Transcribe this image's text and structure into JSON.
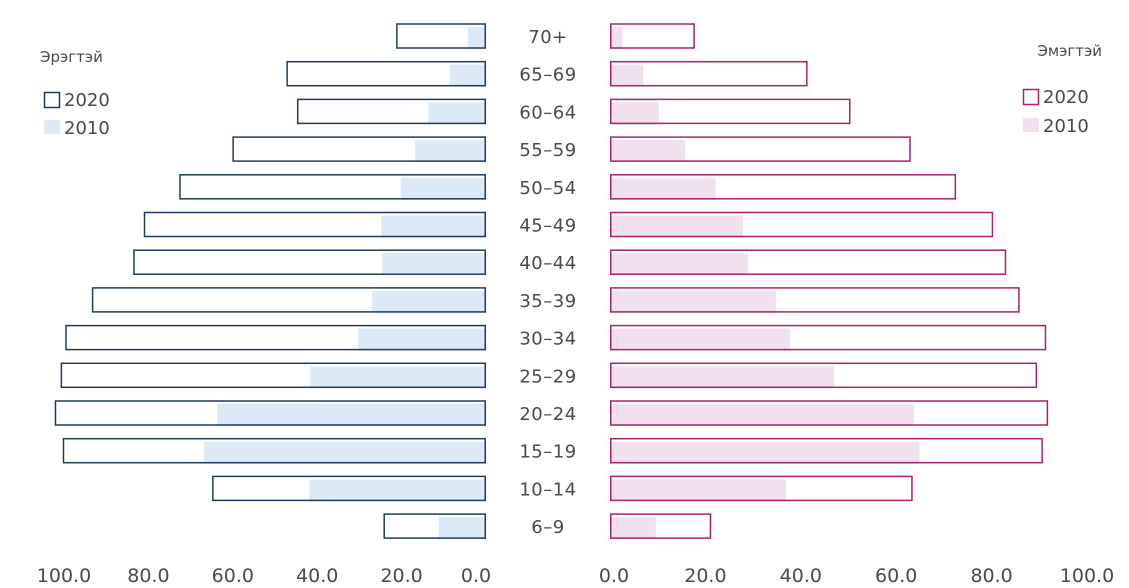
{
  "chart_data": {
    "type": "bar",
    "orientation": "horizontal",
    "layout": "population-pyramid",
    "categories": [
      "70+",
      "65-69",
      "60-64",
      "55-59",
      "50-54",
      "45-49",
      "40-44",
      "35-39",
      "30-34",
      "25-29",
      "20-24",
      "15-19",
      "10-14",
      "6-9"
    ],
    "left_panel": {
      "title": "Эрэгтэй",
      "series": [
        {
          "name": "2020",
          "style": "outline",
          "color": "#1f3b5e",
          "values": [
            21.3,
            47.3,
            44.8,
            60.1,
            72.7,
            81.1,
            83.6,
            93.4,
            99.7,
            100.8,
            102.2,
            100.3,
            64.9,
            24.3
          ]
        },
        {
          "name": "2010",
          "style": "filled",
          "color": "#dbeaf6",
          "values": [
            4.3,
            8.6,
            13.7,
            16.8,
            20.2,
            24.8,
            24.6,
            27.0,
            30.3,
            41.6,
            63.7,
            66.8,
            41.8,
            11.2
          ]
        }
      ],
      "xlim": [
        100.0,
        0.0
      ],
      "ticks": [
        "100.0",
        "80.0",
        "60.0",
        "40.0",
        "20.0",
        "0.0"
      ]
    },
    "right_panel": {
      "title": "Эмэгтэй",
      "series": [
        {
          "name": "2020",
          "style": "outline",
          "color": "#a8226e",
          "values": [
            17.6,
            41.0,
            49.9,
            62.4,
            71.8,
            79.5,
            82.2,
            85.0,
            90.5,
            88.6,
            90.9,
            89.8,
            62.8,
            21.0
          ]
        },
        {
          "name": "2010",
          "style": "filled",
          "color": "#f1e0ed",
          "values": [
            2.6,
            6.9,
            10.1,
            15.6,
            21.9,
            27.6,
            28.6,
            34.4,
            37.3,
            46.5,
            63.1,
            64.2,
            36.5,
            9.5
          ]
        }
      ],
      "xlim": [
        0.0,
        100.0
      ],
      "ticks": [
        "0.0",
        "20.0",
        "40.0",
        "60.0",
        "80.0",
        "100.0"
      ]
    },
    "legend_left": {
      "title": "Эрэгтэй",
      "entries": [
        "2020",
        "2010"
      ],
      "placement": "top-left"
    },
    "legend_right": {
      "title": "Эмэгтэй",
      "entries": [
        "2020",
        "2010"
      ],
      "placement": "top-right"
    },
    "grid": false
  }
}
